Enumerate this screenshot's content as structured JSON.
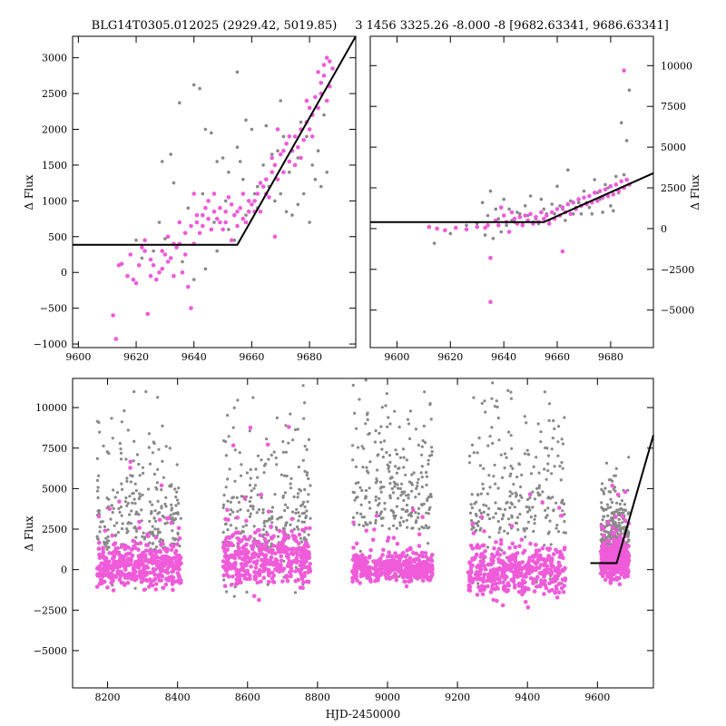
{
  "colors": {
    "grey": "#888888",
    "magenta": "#ef5bd9",
    "line": "#000000"
  },
  "chart_data": [
    {
      "id": "top-left",
      "type": "scatter",
      "title": "BLG14T0305.012025 (2929.42, 5019.85)",
      "xlabel": "",
      "ylabel": "Δ Flux",
      "xlim": [
        9598,
        9696
      ],
      "ylim": [
        -1050,
        3300
      ],
      "xticks": [
        "9600",
        "9620",
        "9640",
        "9660",
        "9680"
      ],
      "yticks": [
        "−1000",
        "−500",
        "0",
        "500",
        "1000",
        "1500",
        "2000",
        "2500",
        "3000"
      ],
      "grey_points": [
        [
          9633,
          1250
        ],
        [
          9635,
          2370
        ],
        [
          9640,
          2620
        ],
        [
          9642,
          2570
        ],
        [
          9644,
          2000
        ],
        [
          9646,
          1950
        ],
        [
          9648,
          1550
        ],
        [
          9650,
          1600
        ],
        [
          9652,
          1400
        ],
        [
          9655,
          2800
        ],
        [
          9655,
          1750
        ],
        [
          9656,
          1550
        ],
        [
          9658,
          2130
        ],
        [
          9660,
          2000
        ],
        [
          9662,
          1200
        ],
        [
          9665,
          2050
        ],
        [
          9667,
          1650
        ],
        [
          9670,
          2400
        ],
        [
          9672,
          850
        ],
        [
          9674,
          800
        ],
        [
          9676,
          950
        ],
        [
          9678,
          1100
        ],
        [
          9680,
          700
        ],
        [
          9682,
          1300
        ],
        [
          9684,
          1200
        ],
        [
          9686,
          1400
        ],
        [
          9630,
          470
        ],
        [
          9626,
          300
        ],
        [
          9636,
          150
        ],
        [
          9640,
          -100
        ],
        [
          9644,
          50
        ],
        [
          9648,
          300
        ],
        [
          9652,
          600
        ],
        [
          9654,
          450
        ],
        [
          9658,
          800
        ],
        [
          9662,
          900
        ],
        [
          9666,
          1200
        ],
        [
          9668,
          1000
        ],
        [
          9670,
          1100
        ],
        [
          9673,
          1400
        ],
        [
          9676,
          1600
        ],
        [
          9679,
          1900
        ],
        [
          9681,
          1500
        ],
        [
          9683,
          1700
        ],
        [
          9685,
          2200
        ],
        [
          9632,
          1650
        ],
        [
          9629,
          1550
        ],
        [
          9628,
          700
        ],
        [
          9622,
          200
        ],
        [
          9620,
          450
        ],
        [
          9638,
          900
        ],
        [
          9643,
          1100
        ],
        [
          9647,
          700
        ],
        [
          9651,
          1000
        ],
        [
          9657,
          1300
        ],
        [
          9661,
          1100
        ],
        [
          9664,
          1500
        ],
        [
          9669,
          1700
        ],
        [
          9671,
          1900
        ],
        [
          9677,
          2100
        ]
      ],
      "magenta_points": [
        [
          9612,
          -600
        ],
        [
          9613,
          -930
        ],
        [
          9614,
          100
        ],
        [
          9615,
          120
        ],
        [
          9617,
          -50
        ],
        [
          9618,
          250
        ],
        [
          9620,
          -150
        ],
        [
          9622,
          350
        ],
        [
          9623,
          450
        ],
        [
          9624,
          -580
        ],
        [
          9625,
          180
        ],
        [
          9626,
          100
        ],
        [
          9628,
          0
        ],
        [
          9629,
          50
        ],
        [
          9630,
          250
        ],
        [
          9631,
          500
        ],
        [
          9632,
          200
        ],
        [
          9633,
          -50
        ],
        [
          9634,
          350
        ],
        [
          9635,
          400
        ],
        [
          9636,
          0
        ],
        [
          9637,
          250
        ],
        [
          9638,
          -200
        ],
        [
          9639,
          -500
        ],
        [
          9640,
          400
        ],
        [
          9640,
          1100
        ],
        [
          9641,
          700
        ],
        [
          9642,
          550
        ],
        [
          9643,
          800
        ],
        [
          9644,
          900
        ],
        [
          9645,
          1000
        ],
        [
          9646,
          600
        ],
        [
          9647,
          850
        ],
        [
          9648,
          750
        ],
        [
          9649,
          900
        ],
        [
          9650,
          600
        ],
        [
          9651,
          700
        ],
        [
          9652,
          1050
        ],
        [
          9653,
          450
        ],
        [
          9654,
          800
        ],
        [
          9655,
          650
        ],
        [
          9656,
          900
        ],
        [
          9657,
          1100
        ],
        [
          9658,
          700
        ],
        [
          9659,
          850
        ],
        [
          9660,
          950
        ],
        [
          9661,
          1000
        ],
        [
          9662,
          1100
        ],
        [
          9663,
          850
        ],
        [
          9664,
          1200
        ],
        [
          9665,
          1300
        ],
        [
          9666,
          1050
        ],
        [
          9667,
          1400
        ],
        [
          9668,
          500
        ],
        [
          9668,
          1500
        ],
        [
          9669,
          1300
        ],
        [
          9670,
          1650
        ],
        [
          9671,
          1400
        ],
        [
          9672,
          1800
        ],
        [
          9673,
          1550
        ],
        [
          9674,
          1700
        ],
        [
          9675,
          1900
        ],
        [
          9676,
          1750
        ],
        [
          9677,
          2000
        ],
        [
          9678,
          1850
        ],
        [
          9679,
          2100
        ],
        [
          9680,
          2000
        ],
        [
          9680,
          2300
        ],
        [
          9681,
          2200
        ],
        [
          9682,
          2450
        ],
        [
          9683,
          2300
        ],
        [
          9683,
          2800
        ],
        [
          9684,
          2650
        ],
        [
          9684,
          2500
        ],
        [
          9685,
          2900
        ],
        [
          9685,
          2750
        ],
        [
          9686,
          3000
        ],
        [
          9686,
          2400
        ],
        [
          9687,
          2950
        ],
        [
          9687,
          2600
        ],
        [
          9688,
          2850
        ],
        [
          9681,
          1900
        ],
        [
          9679,
          2400
        ],
        [
          9677,
          1600
        ],
        [
          9675,
          1500
        ],
        [
          9673,
          1900
        ],
        [
          9671,
          1700
        ],
        [
          9669,
          2000
        ],
        [
          9667,
          1600
        ],
        [
          9665,
          1100
        ],
        [
          9663,
          1250
        ],
        [
          9661,
          850
        ],
        [
          9659,
          1000
        ],
        [
          9657,
          750
        ],
        [
          9655,
          850
        ],
        [
          9653,
          950
        ],
        [
          9651,
          850
        ],
        [
          9649,
          700
        ],
        [
          9647,
          1100
        ],
        [
          9645,
          750
        ],
        [
          9643,
          650
        ],
        [
          9641,
          800
        ],
        [
          9639,
          650
        ],
        [
          9637,
          550
        ],
        [
          9635,
          700
        ],
        [
          9633,
          400
        ],
        [
          9631,
          150
        ],
        [
          9629,
          300
        ],
        [
          9627,
          -100
        ],
        [
          9625,
          -50
        ],
        [
          9623,
          300
        ],
        [
          9621,
          100
        ],
        [
          9619,
          -100
        ]
      ],
      "model": [
        [
          9598,
          385
        ],
        [
          9655,
          385
        ],
        [
          9696,
          3300
        ]
      ]
    },
    {
      "id": "top-right",
      "type": "scatter",
      "title": "3 1456 3325.26 -8.000 -8 [9682.63341, 9686.63341]",
      "xlabel": "",
      "ylabel": "Δ Flux",
      "ylabel_side": "right",
      "xlim": [
        9590,
        9696
      ],
      "ylim": [
        -7300,
        11800
      ],
      "xticks": [
        "9600",
        "9620",
        "9640",
        "9660",
        "9680"
      ],
      "yticks": [
        "−5000",
        "−2500",
        "0",
        "2500",
        "5000",
        "7500",
        "10000"
      ],
      "grey_points": [
        [
          9614,
          -900
        ],
        [
          9620,
          -300
        ],
        [
          9626,
          200
        ],
        [
          9630,
          300
        ],
        [
          9632,
          1600
        ],
        [
          9634,
          800
        ],
        [
          9636,
          -600
        ],
        [
          9638,
          600
        ],
        [
          9640,
          1800
        ],
        [
          9642,
          1200
        ],
        [
          9644,
          400
        ],
        [
          9646,
          900
        ],
        [
          9648,
          1400
        ],
        [
          9650,
          2000
        ],
        [
          9652,
          600
        ],
        [
          9654,
          1800
        ],
        [
          9656,
          900
        ],
        [
          9658,
          1500
        ],
        [
          9660,
          2600
        ],
        [
          9662,
          1200
        ],
        [
          9664,
          3600
        ],
        [
          9666,
          900
        ],
        [
          9668,
          1600
        ],
        [
          9670,
          2300
        ],
        [
          9672,
          1300
        ],
        [
          9674,
          3000
        ],
        [
          9676,
          1800
        ],
        [
          9678,
          2700
        ],
        [
          9680,
          1400
        ],
        [
          9682,
          3200
        ],
        [
          9684,
          6500
        ],
        [
          9686,
          5400
        ],
        [
          9687,
          8500
        ],
        [
          9685,
          3300
        ],
        [
          9683,
          2200
        ],
        [
          9681,
          1100
        ],
        [
          9679,
          2500
        ],
        [
          9677,
          1000
        ],
        [
          9675,
          2200
        ],
        [
          9673,
          900
        ],
        [
          9671,
          1600
        ],
        [
          9669,
          900
        ],
        [
          9667,
          1300
        ],
        [
          9665,
          1700
        ],
        [
          9663,
          500
        ],
        [
          9661,
          1400
        ],
        [
          9659,
          900
        ],
        [
          9657,
          500
        ],
        [
          9655,
          1200
        ],
        [
          9653,
          300
        ],
        [
          9651,
          400
        ],
        [
          9649,
          800
        ],
        [
          9647,
          300
        ],
        [
          9645,
          1000
        ],
        [
          9643,
          500
        ],
        [
          9641,
          200
        ],
        [
          9639,
          -200
        ],
        [
          9637,
          1200
        ],
        [
          9635,
          2300
        ],
        [
          9633,
          -400
        ]
      ],
      "magenta_points": [
        [
          9612,
          100
        ],
        [
          9615,
          0
        ],
        [
          9618,
          -100
        ],
        [
          9622,
          50
        ],
        [
          9626,
          -50
        ],
        [
          9630,
          100
        ],
        [
          9633,
          50
        ],
        [
          9635,
          -1800
        ],
        [
          9635,
          -4500
        ],
        [
          9637,
          500
        ],
        [
          9638,
          200
        ],
        [
          9640,
          800
        ],
        [
          9641,
          400
        ],
        [
          9643,
          1000
        ],
        [
          9644,
          600
        ],
        [
          9645,
          300
        ],
        [
          9646,
          700
        ],
        [
          9647,
          200
        ],
        [
          9648,
          800
        ],
        [
          9649,
          500
        ],
        [
          9650,
          900
        ],
        [
          9651,
          300
        ],
        [
          9652,
          700
        ],
        [
          9653,
          400
        ],
        [
          9654,
          1000
        ],
        [
          9655,
          600
        ],
        [
          9656,
          800
        ],
        [
          9657,
          300
        ],
        [
          9658,
          1000
        ],
        [
          9659,
          600
        ],
        [
          9660,
          1200
        ],
        [
          9661,
          800
        ],
        [
          9662,
          1300
        ],
        [
          9663,
          1000
        ],
        [
          9664,
          1500
        ],
        [
          9665,
          900
        ],
        [
          9666,
          1600
        ],
        [
          9667,
          1200
        ],
        [
          9668,
          1800
        ],
        [
          9669,
          1400
        ],
        [
          9670,
          1900
        ],
        [
          9671,
          1500
        ],
        [
          9672,
          2000
        ],
        [
          9673,
          1600
        ],
        [
          9674,
          2200
        ],
        [
          9675,
          1700
        ],
        [
          9676,
          2300
        ],
        [
          9677,
          1900
        ],
        [
          9678,
          2400
        ],
        [
          9679,
          2000
        ],
        [
          9680,
          2600
        ],
        [
          9681,
          2100
        ],
        [
          9682,
          2700
        ],
        [
          9683,
          2300
        ],
        [
          9684,
          2900
        ],
        [
          9685,
          2500
        ],
        [
          9686,
          3000
        ],
        [
          9687,
          2700
        ],
        [
          9685,
          9700
        ],
        [
          9662,
          -1400
        ],
        [
          9634,
          200
        ],
        [
          9639,
          1300
        ],
        [
          9642,
          -200
        ]
      ],
      "model": [
        [
          9590,
          400
        ],
        [
          9655,
          400
        ],
        [
          9696,
          3400
        ]
      ]
    },
    {
      "id": "bottom",
      "type": "scatter",
      "title": "",
      "xlabel": "HJD-2450000",
      "ylabel": "Δ Flux",
      "xlim": [
        8100,
        9760
      ],
      "ylim": [
        -7300,
        11800
      ],
      "xticks": [
        "8200",
        "8400",
        "8600",
        "8800",
        "9000",
        "9200",
        "9400",
        "9600"
      ],
      "yticks": [
        "−5000",
        "−2500",
        "0",
        "2500",
        "5000",
        "7500",
        "10000"
      ],
      "seasons": [
        {
          "range": [
            8170,
            8410
          ],
          "grey_spread": 4800,
          "grey_base": 1200,
          "magenta_spread": 1400,
          "magenta_base": 200
        },
        {
          "range": [
            8530,
            8780
          ],
          "grey_spread": 5000,
          "grey_base": 1300,
          "magenta_spread": 1800,
          "magenta_base": 700
        },
        {
          "range": [
            8900,
            9130
          ],
          "grey_spread": 5200,
          "grey_base": 2500,
          "magenta_spread": 900,
          "magenta_base": 100
        },
        {
          "range": [
            9230,
            9510
          ],
          "grey_spread": 5200,
          "grey_base": 2200,
          "magenta_spread": 1700,
          "magenta_base": 0
        },
        {
          "range": [
            9610,
            9690
          ],
          "grey_spread": 2500,
          "grey_base": 1200,
          "magenta_spread": 1200,
          "magenta_base": 600
        }
      ],
      "model": [
        [
          9580,
          400
        ],
        [
          9655,
          400
        ],
        [
          9760,
          8300
        ]
      ]
    }
  ]
}
